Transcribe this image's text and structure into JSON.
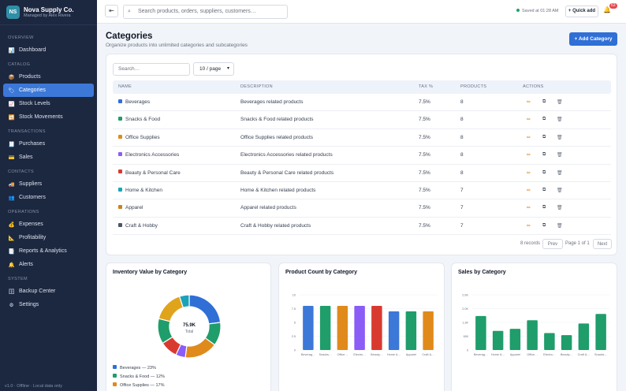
{
  "brand": {
    "initials": "NS",
    "name": "Nova Supply Co.",
    "subtitle": "Managed by Alex Rivera"
  },
  "nav": [
    {
      "section": "OVERVIEW",
      "items": [
        {
          "label": "Dashboard",
          "icon": "chart-icon",
          "glyph": "📊"
        }
      ]
    },
    {
      "section": "CATALOG",
      "items": [
        {
          "label": "Products",
          "icon": "box-icon",
          "glyph": "📦"
        },
        {
          "label": "Categories",
          "icon": "tag-icon",
          "glyph": "🏷",
          "active": true
        },
        {
          "label": "Stock Levels",
          "icon": "stock-icon",
          "glyph": "📈"
        },
        {
          "label": "Stock Movements",
          "icon": "movement-icon",
          "glyph": "🔁"
        }
      ]
    },
    {
      "section": "TRANSACTIONS",
      "items": [
        {
          "label": "Purchases",
          "icon": "receipt-icon",
          "glyph": "🧾"
        },
        {
          "label": "Sales",
          "icon": "card-icon",
          "glyph": "💳"
        }
      ]
    },
    {
      "section": "CONTACTS",
      "items": [
        {
          "label": "Suppliers",
          "icon": "truck-icon",
          "glyph": "🚚"
        },
        {
          "label": "Customers",
          "icon": "people-icon",
          "glyph": "👥"
        }
      ]
    },
    {
      "section": "OPERATIONS",
      "items": [
        {
          "label": "Expenses",
          "icon": "money-icon",
          "glyph": "💰"
        },
        {
          "label": "Profitability",
          "icon": "profit-icon",
          "glyph": "📐"
        },
        {
          "label": "Reports & Analytics",
          "icon": "report-icon",
          "glyph": "📑"
        },
        {
          "label": "Alerts",
          "icon": "bell-icon",
          "glyph": "🔔"
        }
      ]
    },
    {
      "section": "SYSTEM",
      "items": [
        {
          "label": "Backup Center",
          "icon": "backup-icon",
          "glyph": "🗄"
        },
        {
          "label": "Settings",
          "icon": "gear-icon",
          "glyph": "⚙"
        }
      ]
    }
  ],
  "sidebar_footer": "v1.0 · Offline · Local data only",
  "topbar": {
    "collapse_glyph": "⇤",
    "search_placeholder": "Search products, orders, suppliers, customers…",
    "saved": "Saved at 01:28 AM",
    "quick_add": "+ Quick add",
    "notifications": "63"
  },
  "page": {
    "title": "Categories",
    "subtitle": "Organize products into unlimited categories and subcategories",
    "add_button": "+ Add Category"
  },
  "table": {
    "search_placeholder": "Search…",
    "per_page": "10 / page",
    "columns": [
      "NAME",
      "DESCRIPTION",
      "TAX %",
      "PRODUCTS",
      "ACTIONS"
    ],
    "rows": [
      {
        "name": "Beverages",
        "color": "#2f6fd6",
        "description": "Beverages related products",
        "tax": "7.5%",
        "products": "8"
      },
      {
        "name": "Snacks & Food",
        "color": "#1f9d6a",
        "description": "Snacks & Food related products",
        "tax": "7.5%",
        "products": "8"
      },
      {
        "name": "Office Supplies",
        "color": "#e08a1c",
        "description": "Office Supplies related products",
        "tax": "7.5%",
        "products": "8"
      },
      {
        "name": "Electronics Accessories",
        "color": "#8b5cf6",
        "description": "Electronics Accessories related products",
        "tax": "7.5%",
        "products": "8"
      },
      {
        "name": "Beauty & Personal Care",
        "color": "#d93a2f",
        "description": "Beauty & Personal Care related products",
        "tax": "7.5%",
        "products": "8"
      },
      {
        "name": "Home & Kitchen",
        "color": "#1aa3b8",
        "description": "Home & Kitchen related products",
        "tax": "7.5%",
        "products": "7"
      },
      {
        "name": "Apparel",
        "color": "#c9831f",
        "description": "Apparel related products",
        "tax": "7.5%",
        "products": "7"
      },
      {
        "name": "Craft & Hobby",
        "color": "#4b5563",
        "description": "Craft & Hobby related products",
        "tax": "7.5%",
        "products": "7"
      }
    ],
    "records": "8 records",
    "prev": "Prev",
    "page_info": "Page 1 of 1",
    "next": "Next"
  },
  "charts": {
    "donut_title": "Inventory Value by Category",
    "donut_center_value": "75.9K",
    "donut_center_label": "Total",
    "bar_title": "Product Count by Category",
    "sales_title": "Sales by Category"
  },
  "chart_data": [
    {
      "type": "pie",
      "title": "Inventory Value by Category",
      "categories": [
        "Beverages",
        "Snacks & Food",
        "Office Supplies",
        "Electronics Accessories",
        "Beauty & Personal Care",
        "Home & Kitchen",
        "Apparel",
        "Craft & Hobby"
      ],
      "values": [
        23,
        12,
        17,
        5,
        9,
        13,
        16,
        5
      ],
      "legend_labels": [
        "Beverages — 23%",
        "Snacks & Food — 12%",
        "Office Supplies — 17%"
      ],
      "colors": [
        "#2f6fd6",
        "#1f9d6a",
        "#e08a1c",
        "#8b5cf6",
        "#d93a2f",
        "#1f9d6a",
        "#e0a31c",
        "#1aa3b8"
      ]
    },
    {
      "type": "bar",
      "title": "Product Count by Category",
      "categories": [
        "Beverag…",
        "Snacks…",
        "Office…",
        "Electro…",
        "Beauty…",
        "Home &…",
        "Apparel",
        "Craft &…"
      ],
      "values": [
        8,
        8,
        8,
        8,
        8,
        7,
        7,
        7
      ],
      "ylim": [
        0,
        10
      ],
      "yticks": [
        "10",
        "7.5",
        "5",
        "2.5",
        "0"
      ],
      "colors": [
        "#3c78d8",
        "#1f9d6a",
        "#e08a1c",
        "#8b5cf6",
        "#d93a2f",
        "#3c78d8",
        "#1f9d6a",
        "#e08a1c"
      ]
    },
    {
      "type": "bar",
      "title": "Sales by Category",
      "categories": [
        "Beverag…",
        "Home &…",
        "Apparel",
        "Office…",
        "Electro…",
        "Beauty…",
        "Craft &…",
        "Snacks…"
      ],
      "values": [
        1600,
        900,
        1000,
        1400,
        800,
        700,
        1250,
        1700
      ],
      "ylim": [
        0,
        2600
      ],
      "yticks": [
        "2.6K",
        "2.0K",
        "1.3K",
        "650",
        "0"
      ],
      "color": "#1f9d6a"
    }
  ]
}
